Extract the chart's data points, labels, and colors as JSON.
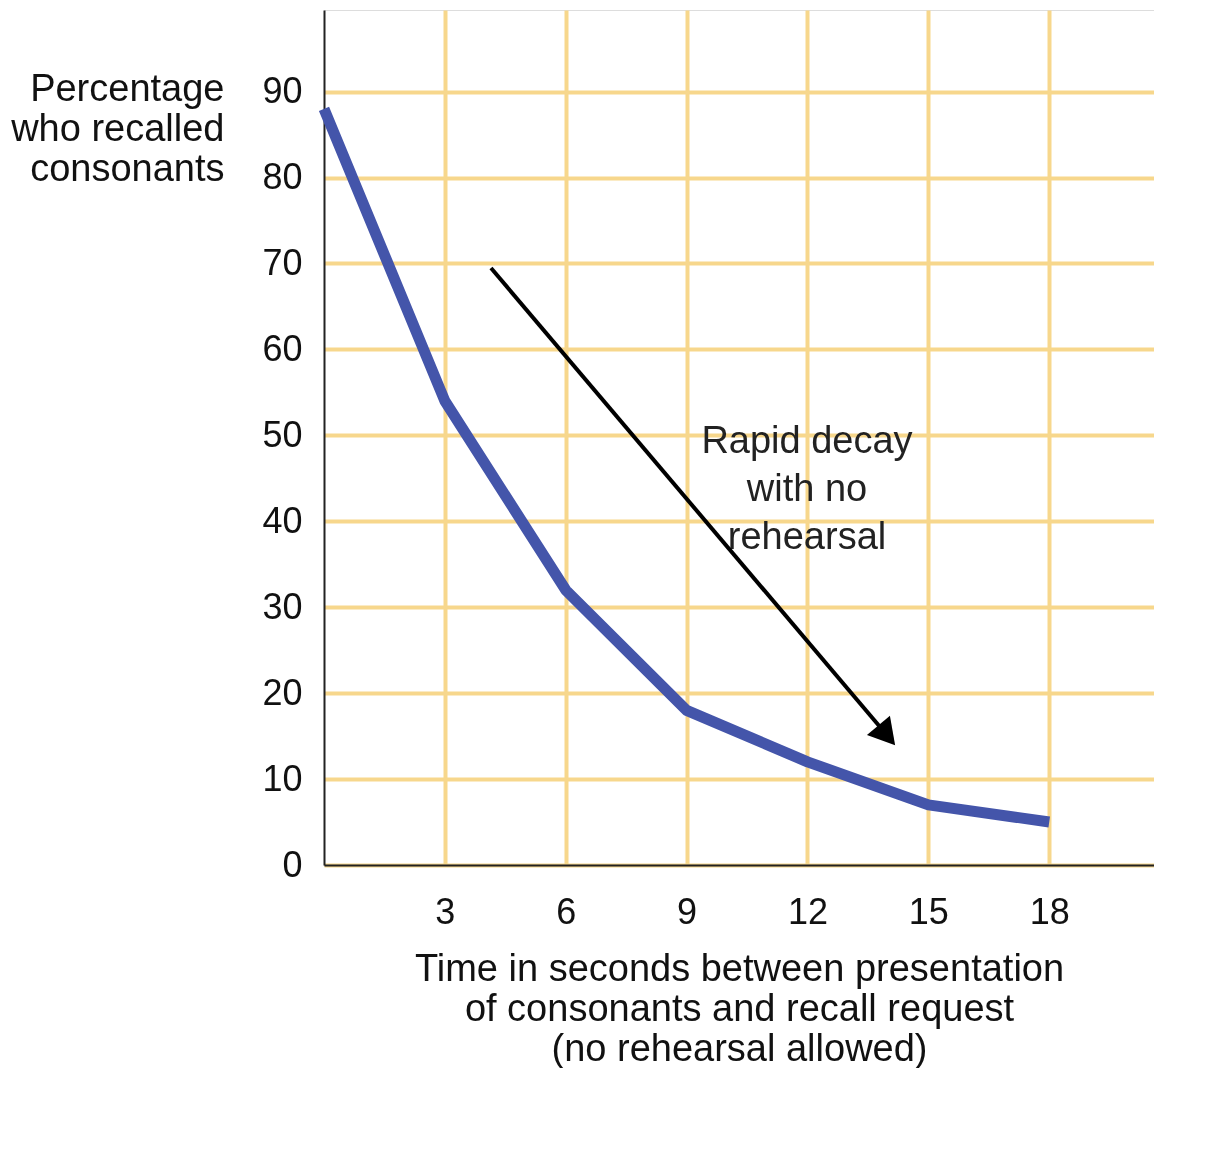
{
  "chart_data": {
    "type": "line",
    "xlabel": "Time in seconds between presentation\nof consonants and recall request\n(no rehearsal allowed)",
    "ylabel": "Percentage\nwho recalled\nconsonants",
    "x": [
      0,
      3,
      6,
      9,
      12,
      15,
      18
    ],
    "series": [
      {
        "color": "#4455aa",
        "values": [
          88,
          54,
          32,
          18,
          12,
          7,
          5
        ]
      }
    ],
    "xlim": [
      0,
      20.6
    ],
    "ylim": [
      0,
      99.5
    ],
    "xticks": [
      3,
      6,
      9,
      12,
      15,
      18
    ],
    "yticks": [
      0,
      10,
      20,
      30,
      40,
      50,
      60,
      70,
      80,
      90
    ],
    "grid": true,
    "marker": "none",
    "line_style": "solid",
    "annotations": [
      "Rapid decay\nwith no\nrehearsal"
    ]
  }
}
